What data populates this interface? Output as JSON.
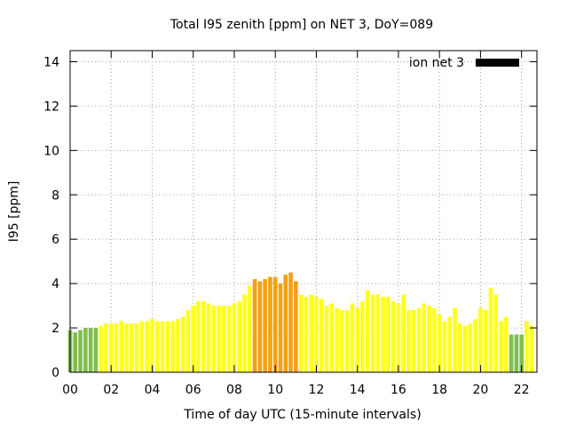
{
  "chart_data": {
    "type": "bar",
    "title": "Total I95 zenith [ppm] on NET 3, DoY=089",
    "xlabel": "Time of day UTC (15-minute intervals)",
    "ylabel": "I95 [ppm]",
    "ylim": [
      0,
      14.5
    ],
    "xlim": [
      0,
      22.75
    ],
    "grid": true,
    "yticks": [
      "0",
      "2",
      "4",
      "6",
      "8",
      "10",
      "12",
      "14"
    ],
    "xticks": [
      "00",
      "02",
      "04",
      "06",
      "08",
      "10",
      "12",
      "14",
      "16",
      "18",
      "20",
      "22"
    ],
    "legend": {
      "label": "ion net 3",
      "position": "top-right",
      "color": "#000000"
    },
    "bar_step_hours": 0.25,
    "colors": {
      "green": "#7fbe4e",
      "yellow": "#ffff1f",
      "orange": "#f5a015"
    },
    "x": [
      0.0,
      0.25,
      0.5,
      0.75,
      1.0,
      1.25,
      1.5,
      1.75,
      2.0,
      2.25,
      2.5,
      2.75,
      3.0,
      3.25,
      3.5,
      3.75,
      4.0,
      4.25,
      4.5,
      4.75,
      5.0,
      5.25,
      5.5,
      5.75,
      6.0,
      6.25,
      6.5,
      6.75,
      7.0,
      7.25,
      7.5,
      7.75,
      8.0,
      8.25,
      8.5,
      8.75,
      9.0,
      9.25,
      9.5,
      9.75,
      10.0,
      10.25,
      10.5,
      10.75,
      11.0,
      11.25,
      11.5,
      11.75,
      12.0,
      12.25,
      12.5,
      12.75,
      13.0,
      13.25,
      13.5,
      13.75,
      14.0,
      14.25,
      14.5,
      14.75,
      15.0,
      15.25,
      15.5,
      15.75,
      16.0,
      16.25,
      16.5,
      16.75,
      17.0,
      17.25,
      17.5,
      17.75,
      18.0,
      18.25,
      18.5,
      18.75,
      19.0,
      19.25,
      19.5,
      19.75,
      20.0,
      20.25,
      20.5,
      20.75,
      21.0,
      21.25,
      21.5,
      21.75,
      22.0,
      22.25,
      22.5
    ],
    "values": [
      1.9,
      1.8,
      1.9,
      2.0,
      2.0,
      2.0,
      2.1,
      2.2,
      2.2,
      2.2,
      2.3,
      2.2,
      2.2,
      2.2,
      2.3,
      2.3,
      2.4,
      2.3,
      2.3,
      2.3,
      2.3,
      2.4,
      2.5,
      2.8,
      3.0,
      3.2,
      3.2,
      3.1,
      3.0,
      3.0,
      3.0,
      3.0,
      3.1,
      3.2,
      3.5,
      3.9,
      4.2,
      4.1,
      4.2,
      4.3,
      4.3,
      4.0,
      4.4,
      4.5,
      4.1,
      3.5,
      3.4,
      3.5,
      3.4,
      3.3,
      3.0,
      3.1,
      2.9,
      2.8,
      2.8,
      3.1,
      2.9,
      3.2,
      3.7,
      3.5,
      3.5,
      3.4,
      3.4,
      3.2,
      3.1,
      3.5,
      2.8,
      2.8,
      2.9,
      3.1,
      3.0,
      2.9,
      2.6,
      2.3,
      2.5,
      2.9,
      2.2,
      2.1,
      2.2,
      2.4,
      2.9,
      2.8,
      3.8,
      3.5,
      2.3,
      2.5,
      1.7,
      1.7,
      1.7,
      2.3,
      2.1
    ],
    "bar_colors": [
      "green",
      "green",
      "green",
      "green",
      "green",
      "green",
      "yellow",
      "yellow",
      "yellow",
      "yellow",
      "yellow",
      "yellow",
      "yellow",
      "yellow",
      "yellow",
      "yellow",
      "yellow",
      "yellow",
      "yellow",
      "yellow",
      "yellow",
      "yellow",
      "yellow",
      "yellow",
      "yellow",
      "yellow",
      "yellow",
      "yellow",
      "yellow",
      "yellow",
      "yellow",
      "yellow",
      "yellow",
      "yellow",
      "yellow",
      "yellow",
      "orange",
      "orange",
      "orange",
      "orange",
      "orange",
      "orange",
      "orange",
      "orange",
      "orange",
      "yellow",
      "yellow",
      "yellow",
      "yellow",
      "yellow",
      "yellow",
      "yellow",
      "yellow",
      "yellow",
      "yellow",
      "yellow",
      "yellow",
      "yellow",
      "yellow",
      "yellow",
      "yellow",
      "yellow",
      "yellow",
      "yellow",
      "yellow",
      "yellow",
      "yellow",
      "yellow",
      "yellow",
      "yellow",
      "yellow",
      "yellow",
      "yellow",
      "yellow",
      "yellow",
      "yellow",
      "yellow",
      "yellow",
      "yellow",
      "yellow",
      "yellow",
      "yellow",
      "yellow",
      "yellow",
      "yellow",
      "yellow",
      "green",
      "green",
      "green",
      "yellow",
      "yellow"
    ]
  }
}
